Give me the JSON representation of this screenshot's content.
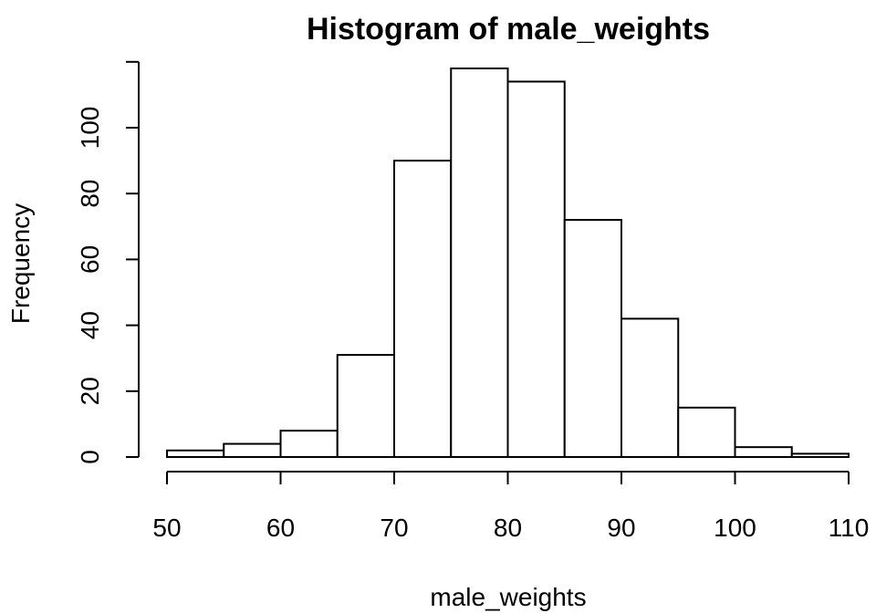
{
  "chart_data": {
    "type": "bar",
    "title": "Histogram of male_weights",
    "xlabel": "male_weights",
    "ylabel": "Frequency",
    "bin_edges": [
      50,
      55,
      60,
      65,
      70,
      75,
      80,
      85,
      90,
      95,
      100,
      105,
      110
    ],
    "values": [
      2,
      4,
      8,
      31,
      90,
      118,
      114,
      72,
      42,
      15,
      3,
      1
    ],
    "xlim": [
      50,
      110
    ],
    "ylim": [
      0,
      120
    ],
    "x_ticks": [
      50,
      60,
      70,
      80,
      90,
      100,
      110
    ],
    "y_ticks": [
      0,
      20,
      40,
      60,
      80,
      100
    ],
    "grid": false,
    "colors": {
      "bar_fill": "#ffffff",
      "bar_stroke": "#000000"
    }
  }
}
